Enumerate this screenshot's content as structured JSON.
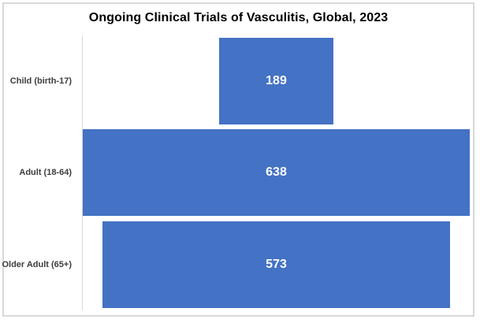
{
  "chart_data": {
    "type": "bar",
    "subtype": "funnel-centered",
    "orientation": "horizontal",
    "title": "Ongoing Clinical Trials of Vasculitis, Global, 2023",
    "categories": [
      "Child (birth-17)",
      "Adult (18-64)",
      "Older Adult (65+)"
    ],
    "values": [
      189,
      638,
      573
    ],
    "value_labels": [
      "189",
      "638",
      "573"
    ],
    "xlim": [
      0,
      638
    ],
    "grid": false,
    "legend": false,
    "value_labels_position": "inside-center",
    "colors": {
      "bar": "#4472C4",
      "value_label": "#FFFFFF",
      "title": "#000000",
      "category_label": "#3D3D3D",
      "axis_line": "#D9D9D9",
      "chart_border": "#D8D8D8",
      "background": "#FFFFFF"
    }
  }
}
